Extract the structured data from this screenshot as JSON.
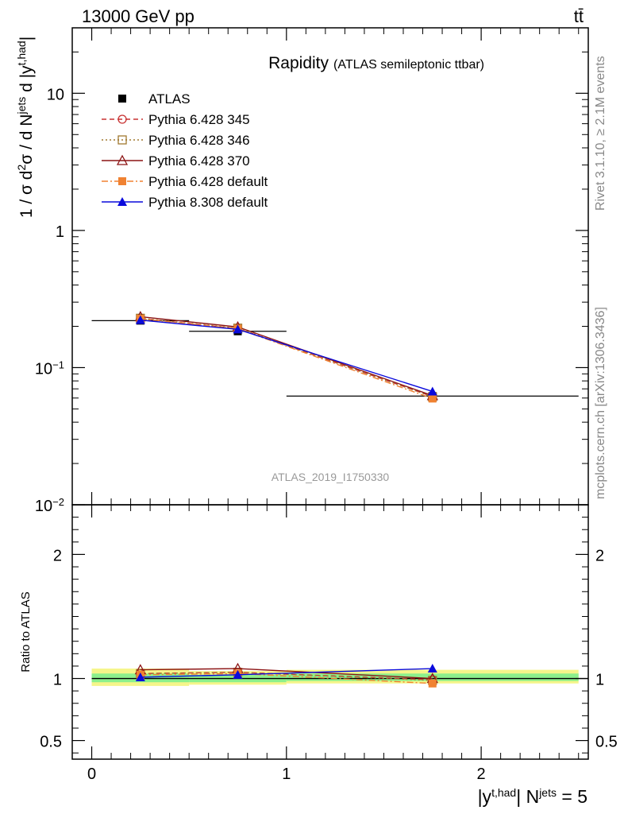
{
  "header": {
    "energy_label": "13000 GeV pp",
    "process_label": "tt̄",
    "side_note": "Rivet 3.1.10, ≥ 2.1M events",
    "source_note": "mcplots.cern.ch [arXiv:1306.3436]",
    "analysis_id": "ATLAS_2019_I1750330"
  },
  "chart_data": [
    {
      "type": "line",
      "title": "Rapidity",
      "subtitle": "(ATLAS semileptonic ttbar)",
      "xlabel": "|y^{t,had}| N^{jets} = 5",
      "ylabel": "1 / σ d²σ / d N^{jets} d |y^{t,had}|",
      "y_scale": "log",
      "xlim": [
        -0.1,
        2.55
      ],
      "ylim": [
        0.01,
        30
      ],
      "x_ticks": [
        0,
        1,
        2
      ],
      "y_ticks": [
        "10^{-2}",
        "10^{-1}",
        "1",
        "10"
      ],
      "legend_position": "top-left",
      "x": [
        0.25,
        0.75,
        1.75
      ],
      "series": [
        {
          "name": "ATLAS",
          "color": "#000000",
          "marker": "square",
          "values": [
            0.22,
            0.184,
            0.062
          ],
          "x_err": [
            0.25,
            0.25,
            0.75
          ]
        },
        {
          "name": "Pythia 6.428 345",
          "color": "#c83232",
          "marker": "circle-open",
          "dash": "dashed",
          "values": [
            0.228,
            0.193,
            0.0615
          ]
        },
        {
          "name": "Pythia 6.428 346",
          "color": "#a07830",
          "marker": "square-open",
          "dash": "dotted",
          "values": [
            0.229,
            0.194,
            0.0612
          ]
        },
        {
          "name": "Pythia 6.428 370",
          "color": "#8c1414",
          "marker": "triangle-open",
          "dash": "solid",
          "values": [
            0.235,
            0.198,
            0.0625
          ]
        },
        {
          "name": "Pythia 6.428 default",
          "color": "#f08232",
          "marker": "square",
          "dash": "dashdot",
          "values": [
            0.227,
            0.192,
            0.0595
          ]
        },
        {
          "name": "Pythia 8.308 default",
          "color": "#0a0adc",
          "marker": "triangle",
          "dash": "solid",
          "values": [
            0.222,
            0.19,
            0.067
          ]
        }
      ]
    },
    {
      "type": "line",
      "xlabel": "|y^{t,had}| N^{jets} = 5",
      "ylabel": "Ratio to ATLAS",
      "xlim": [
        -0.1,
        2.55
      ],
      "ylim": [
        0.35,
        2.4
      ],
      "y_ticks": [
        0.5,
        1,
        2
      ],
      "x": [
        0.25,
        0.75,
        1.75
      ],
      "reference_bands": [
        {
          "x_range": [
            0,
            0.5
          ],
          "yellow": [
            0.94,
            1.08
          ],
          "green": [
            0.97,
            1.04
          ]
        },
        {
          "x_range": [
            0.5,
            1.0
          ],
          "yellow": [
            0.95,
            1.06
          ],
          "green": [
            0.97,
            1.03
          ]
        },
        {
          "x_range": [
            1.0,
            2.5
          ],
          "yellow": [
            0.96,
            1.07
          ],
          "green": [
            0.98,
            1.04
          ]
        }
      ],
      "series": [
        {
          "name": "Pythia 6.428 345",
          "values": [
            1.04,
            1.05,
            0.99
          ]
        },
        {
          "name": "Pythia 6.428 346",
          "values": [
            1.04,
            1.05,
            0.985
          ]
        },
        {
          "name": "Pythia 6.428 370",
          "values": [
            1.07,
            1.08,
            1.0
          ]
        },
        {
          "name": "Pythia 6.428 default",
          "values": [
            1.03,
            1.04,
            0.96
          ]
        },
        {
          "name": "Pythia 8.308 default",
          "values": [
            1.01,
            1.03,
            1.08
          ]
        }
      ]
    }
  ]
}
